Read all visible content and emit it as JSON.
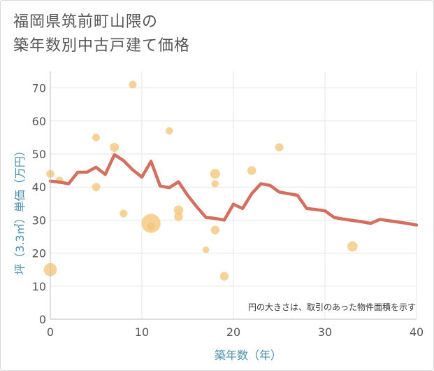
{
  "title_line1": "福岡県筑前町山隈の",
  "title_line2": "築年数別中古戸建て価格",
  "chart_data": {
    "type": "scatter",
    "title": "福岡県筑前町山隈の築年数別中古戸建て価格",
    "xlabel": "築年数（年）",
    "ylabel": "坪（3.3㎡）単価（万円）",
    "xlim": [
      0,
      40
    ],
    "ylim": [
      0,
      75
    ],
    "x_ticks": [
      0,
      10,
      20,
      30,
      40
    ],
    "y_ticks": [
      0,
      10,
      20,
      30,
      40,
      50,
      60,
      70
    ],
    "grid": true,
    "note": "円の大きさは、取引のあった物件面積を示す",
    "colors": {
      "bubble": "#f5c57a",
      "line": "#d36f5e",
      "grid": "#e6e6e6",
      "axis_label": "#4a8fb0"
    },
    "bubbles": [
      {
        "x": 0,
        "y": 15,
        "size": 3.2
      },
      {
        "x": 0,
        "y": 44,
        "size": 1.2
      },
      {
        "x": 1,
        "y": 42,
        "size": 1.1
      },
      {
        "x": 5,
        "y": 55,
        "size": 1.1
      },
      {
        "x": 5,
        "y": 40,
        "size": 1.3
      },
      {
        "x": 7,
        "y": 52,
        "size": 1.5
      },
      {
        "x": 8,
        "y": 32,
        "size": 1.1
      },
      {
        "x": 9,
        "y": 71,
        "size": 1.1
      },
      {
        "x": 11,
        "y": 29,
        "size": 6.8
      },
      {
        "x": 11,
        "y": 28,
        "size": 1.2
      },
      {
        "x": 13,
        "y": 57,
        "size": 1.0
      },
      {
        "x": 14,
        "y": 33,
        "size": 1.6
      },
      {
        "x": 14,
        "y": 31,
        "size": 1.4
      },
      {
        "x": 17,
        "y": 21,
        "size": 0.8
      },
      {
        "x": 18,
        "y": 44,
        "size": 1.8
      },
      {
        "x": 18,
        "y": 41,
        "size": 1.0
      },
      {
        "x": 18,
        "y": 27,
        "size": 1.4
      },
      {
        "x": 19,
        "y": 13,
        "size": 1.4
      },
      {
        "x": 22,
        "y": 45,
        "size": 1.4
      },
      {
        "x": 25,
        "y": 52,
        "size": 1.3
      },
      {
        "x": 33,
        "y": 22,
        "size": 1.9
      }
    ],
    "trend": {
      "x": [
        0,
        1,
        2,
        3,
        4,
        5,
        6,
        7,
        8,
        9,
        10,
        11,
        12,
        13,
        14,
        15,
        16,
        17,
        18,
        19,
        20,
        21,
        22,
        23,
        24,
        25,
        26,
        27,
        28,
        29,
        30,
        31,
        32,
        33,
        34,
        35,
        36,
        37,
        38,
        39,
        40
      ],
      "y": [
        41.8,
        41.5,
        41.0,
        44.5,
        44.5,
        46.0,
        43.8,
        49.8,
        48.0,
        45.2,
        43.0,
        47.8,
        40.3,
        39.8,
        41.6,
        37.5,
        34.0,
        30.8,
        30.5,
        30.0,
        34.8,
        33.5,
        38.0,
        41.0,
        40.5,
        38.5,
        38.0,
        37.5,
        33.5,
        33.2,
        32.8,
        30.8,
        30.3,
        29.9,
        29.5,
        29.0,
        30.2,
        29.8,
        29.4,
        29.0,
        28.5
      ]
    }
  }
}
